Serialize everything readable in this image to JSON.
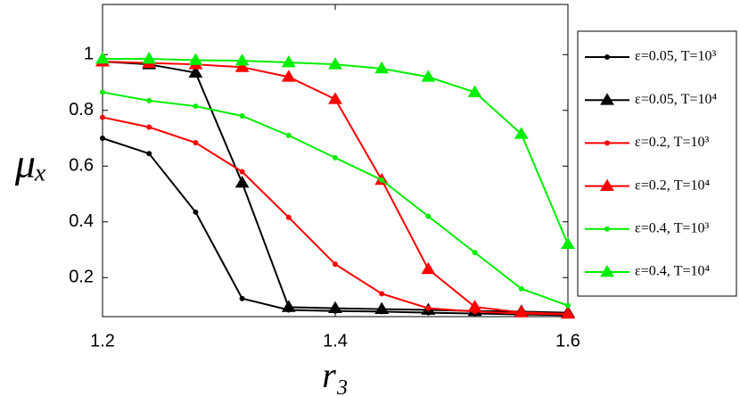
{
  "chart_data": {
    "type": "line",
    "x": [
      1.2,
      1.24,
      1.28,
      1.32,
      1.36,
      1.4,
      1.44,
      1.48,
      1.52,
      1.56,
      1.6
    ],
    "xlabel": "r₃",
    "ylabel": "μₓ",
    "xlim": [
      1.2,
      1.6
    ],
    "ylim": [
      0.06,
      1.18
    ],
    "xticks": [
      1.2,
      1.4,
      1.6
    ],
    "yticks": [
      0.2,
      0.4,
      0.6,
      0.8,
      1
    ],
    "legend": "outside-right",
    "series": [
      {
        "name": "ε=0.05, T=10³",
        "color": "#000000",
        "marker": "dot",
        "values": [
          0.7,
          0.645,
          0.435,
          0.125,
          0.084,
          0.08,
          0.078,
          0.074,
          0.071,
          0.068,
          0.065
        ]
      },
      {
        "name": "ε=0.05, T=10⁴",
        "color": "#000000",
        "marker": "triangle",
        "values": [
          0.975,
          0.965,
          0.935,
          0.54,
          0.094,
          0.09,
          0.087,
          0.084,
          0.08,
          0.078,
          0.074
        ]
      },
      {
        "name": "ε=0.2, T=10³",
        "color": "#ff0000",
        "marker": "dot",
        "values": [
          0.775,
          0.74,
          0.684,
          0.58,
          0.416,
          0.248,
          0.142,
          0.09,
          0.078,
          0.071,
          0.068
        ]
      },
      {
        "name": "ε=0.2, T=10⁴",
        "color": "#ff0000",
        "marker": "triangle",
        "values": [
          0.975,
          0.97,
          0.965,
          0.955,
          0.92,
          0.84,
          0.55,
          0.23,
          0.095,
          0.075,
          0.07
        ]
      },
      {
        "name": "ε=0.4, T=10³",
        "color": "#00ee00",
        "marker": "dot",
        "values": [
          0.865,
          0.835,
          0.815,
          0.78,
          0.71,
          0.63,
          0.55,
          0.42,
          0.29,
          0.16,
          0.1
        ]
      },
      {
        "name": "ε=0.4, T=10⁴",
        "color": "#00ee00",
        "marker": "triangle",
        "values": [
          0.985,
          0.985,
          0.98,
          0.978,
          0.972,
          0.965,
          0.95,
          0.92,
          0.865,
          0.715,
          0.32
        ]
      }
    ]
  }
}
